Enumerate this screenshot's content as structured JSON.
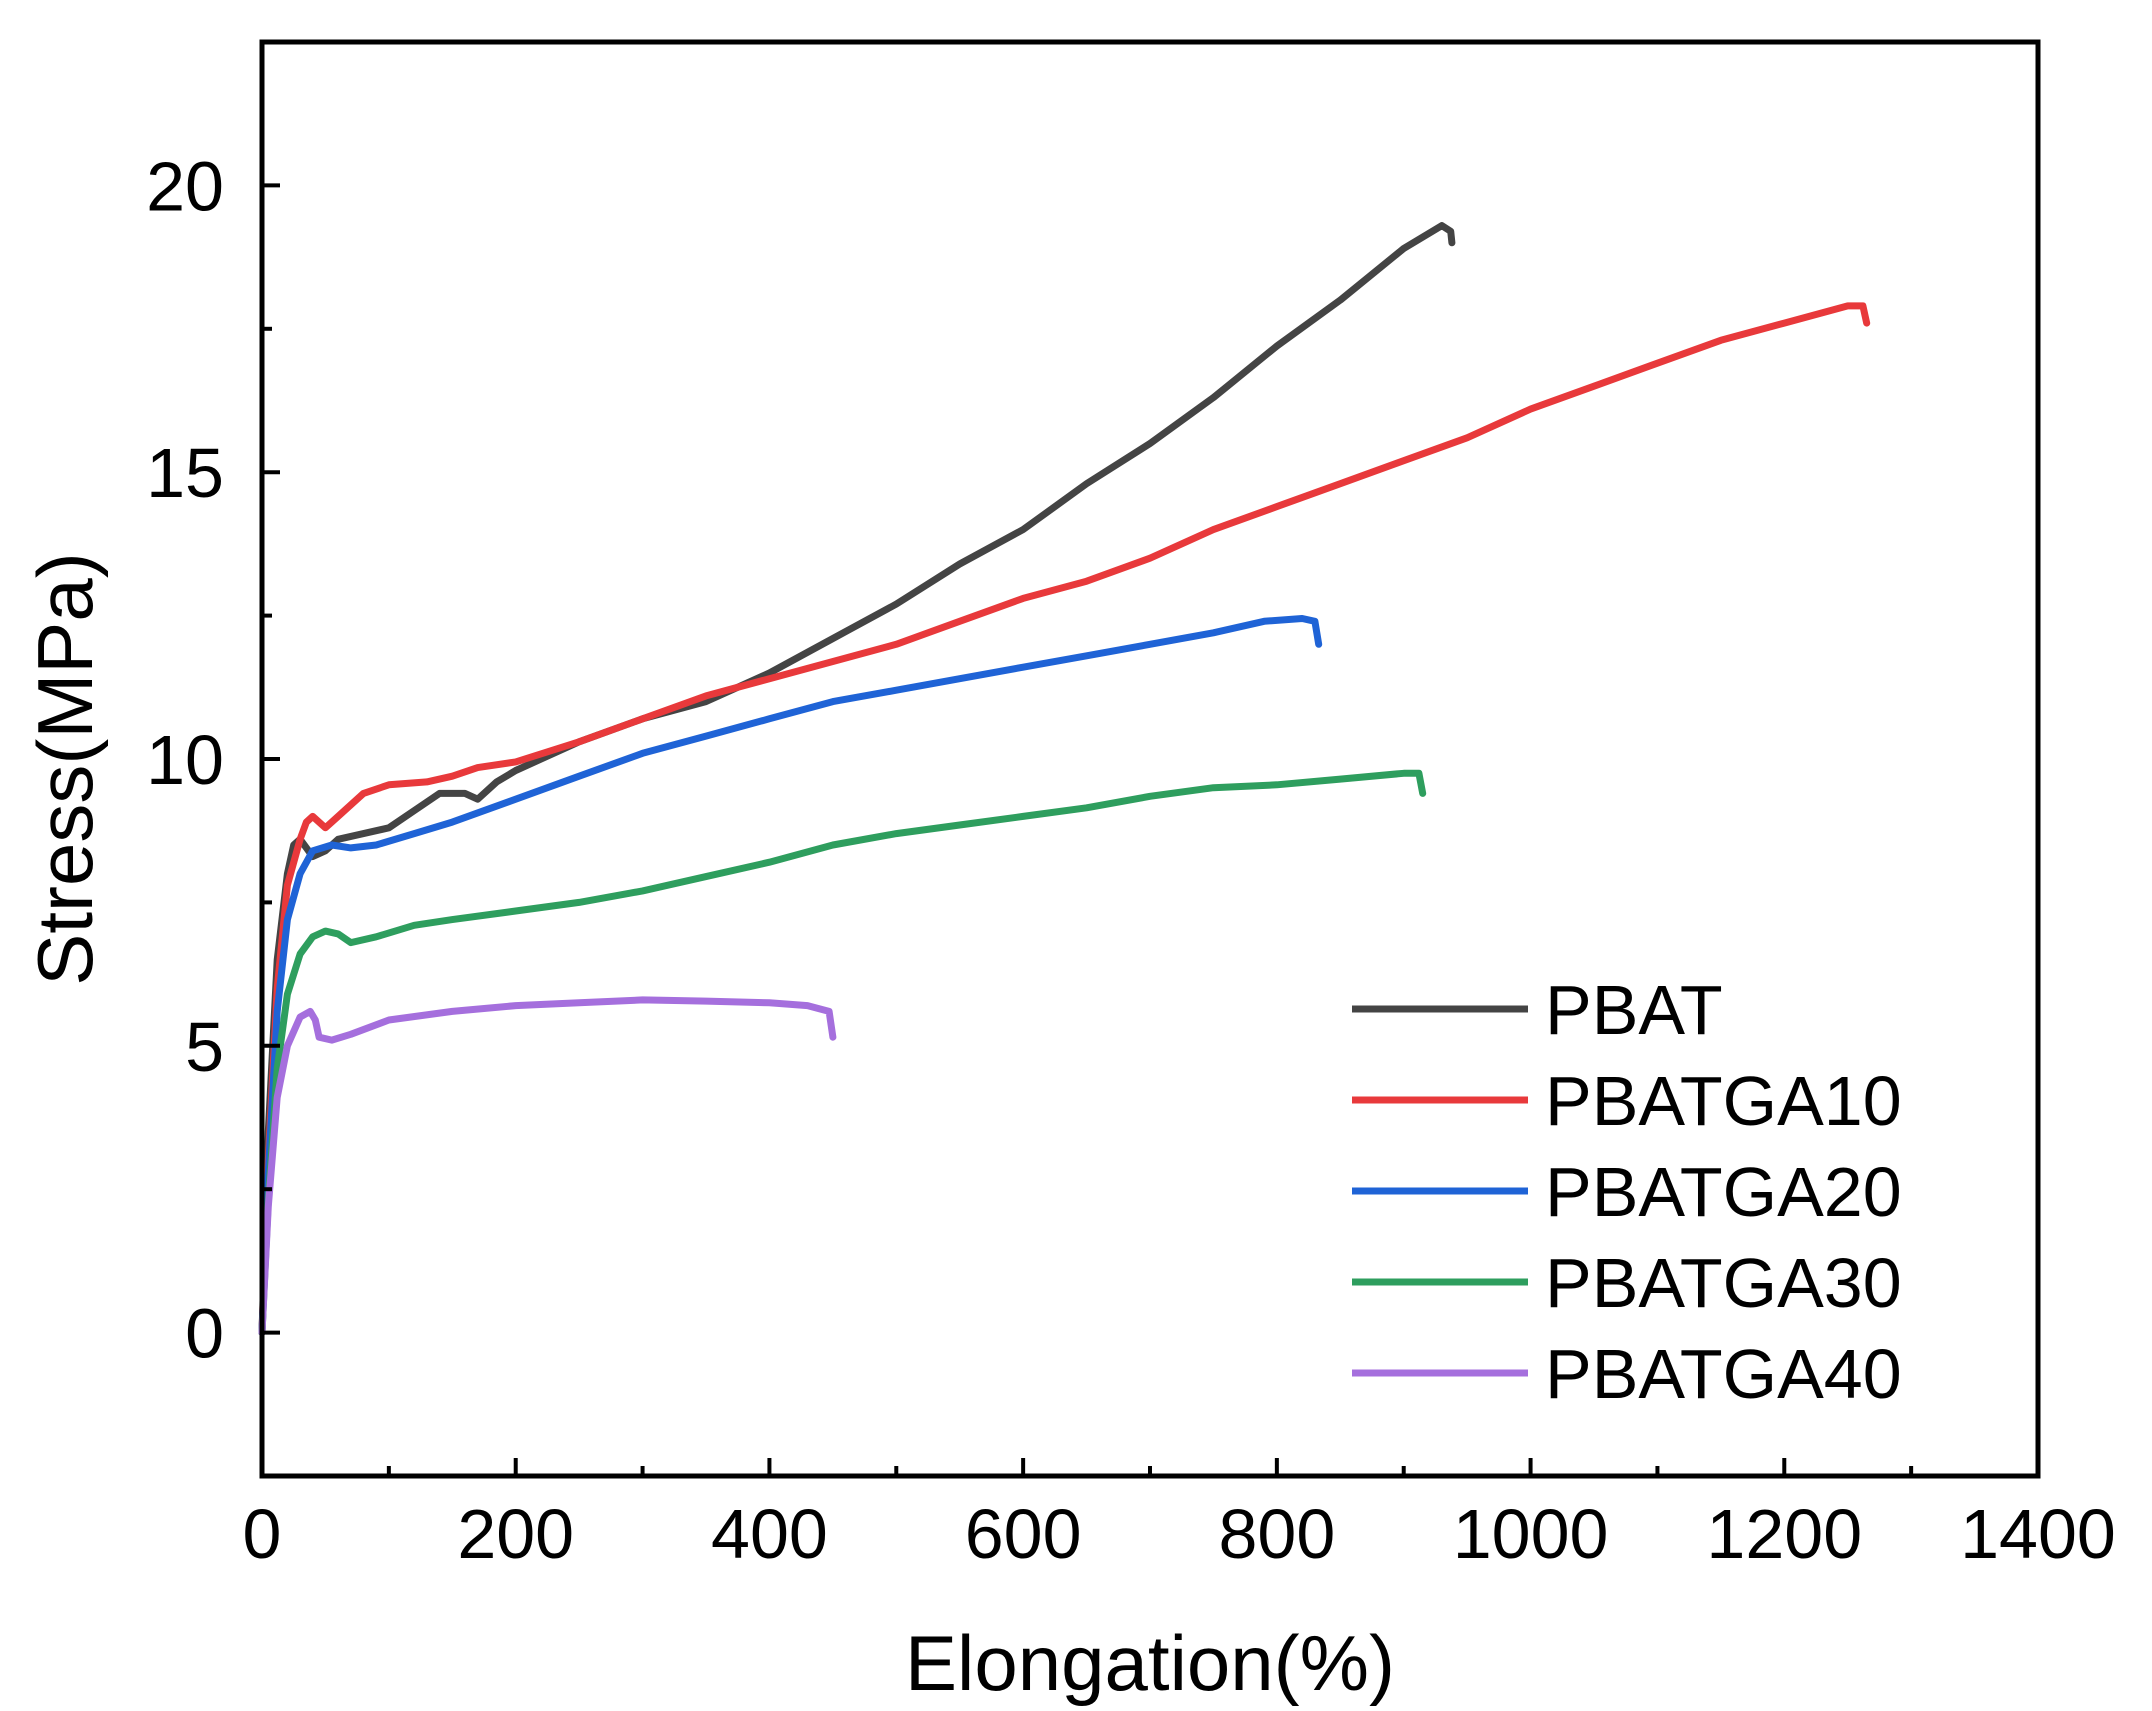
{
  "chart_data": {
    "type": "line",
    "title": "",
    "xlabel": "Elongation(%)",
    "ylabel": "Stress(MPa)",
    "xlim": [
      0,
      1400
    ],
    "ylim": [
      -2.5,
      22.5
    ],
    "xticks": [
      0,
      200,
      400,
      600,
      800,
      1000,
      1200,
      1400
    ],
    "xtick_labels": [
      "0",
      "200",
      "400",
      "600",
      "800",
      "1000",
      "1200",
      "1400"
    ],
    "yticks": [
      0,
      5,
      10,
      15,
      20
    ],
    "ytick_labels": [
      "0",
      "5",
      "10",
      "15",
      "20"
    ],
    "grid": false,
    "legend_position": "bottom-right",
    "series": [
      {
        "name": "PBAT",
        "color": "#444444",
        "points": [
          [
            0,
            0
          ],
          [
            5,
            3.5
          ],
          [
            12,
            6.5
          ],
          [
            20,
            8.0
          ],
          [
            25,
            8.5
          ],
          [
            30,
            8.6
          ],
          [
            40,
            8.3
          ],
          [
            50,
            8.4
          ],
          [
            60,
            8.6
          ],
          [
            80,
            8.7
          ],
          [
            100,
            8.8
          ],
          [
            120,
            9.1
          ],
          [
            140,
            9.4
          ],
          [
            160,
            9.4
          ],
          [
            170,
            9.3
          ],
          [
            185,
            9.6
          ],
          [
            200,
            9.8
          ],
          [
            250,
            10.3
          ],
          [
            300,
            10.7
          ],
          [
            350,
            11.0
          ],
          [
            400,
            11.5
          ],
          [
            450,
            12.1
          ],
          [
            500,
            12.7
          ],
          [
            550,
            13.4
          ],
          [
            600,
            14.0
          ],
          [
            650,
            14.8
          ],
          [
            700,
            15.5
          ],
          [
            750,
            16.3
          ],
          [
            800,
            17.2
          ],
          [
            850,
            18.0
          ],
          [
            900,
            18.9
          ],
          [
            930,
            19.3
          ],
          [
            937,
            19.2
          ],
          [
            938,
            19.0
          ]
        ]
      },
      {
        "name": "PBATGA10",
        "color": "#e8393b",
        "points": [
          [
            0,
            0
          ],
          [
            5,
            3.0
          ],
          [
            12,
            6.0
          ],
          [
            20,
            7.8
          ],
          [
            30,
            8.6
          ],
          [
            35,
            8.9
          ],
          [
            40,
            9.0
          ],
          [
            50,
            8.8
          ],
          [
            60,
            9.0
          ],
          [
            80,
            9.4
          ],
          [
            100,
            9.55
          ],
          [
            130,
            9.6
          ],
          [
            150,
            9.7
          ],
          [
            170,
            9.85
          ],
          [
            200,
            9.95
          ],
          [
            250,
            10.3
          ],
          [
            300,
            10.7
          ],
          [
            350,
            11.1
          ],
          [
            400,
            11.4
          ],
          [
            450,
            11.7
          ],
          [
            500,
            12.0
          ],
          [
            550,
            12.4
          ],
          [
            600,
            12.8
          ],
          [
            650,
            13.1
          ],
          [
            700,
            13.5
          ],
          [
            750,
            14.0
          ],
          [
            800,
            14.4
          ],
          [
            850,
            14.8
          ],
          [
            900,
            15.2
          ],
          [
            950,
            15.6
          ],
          [
            1000,
            16.1
          ],
          [
            1050,
            16.5
          ],
          [
            1100,
            16.9
          ],
          [
            1150,
            17.3
          ],
          [
            1200,
            17.6
          ],
          [
            1250,
            17.9
          ],
          [
            1262,
            17.9
          ],
          [
            1265,
            17.6
          ]
        ]
      },
      {
        "name": "PBATGA20",
        "color": "#1f63d6",
        "points": [
          [
            0,
            0
          ],
          [
            5,
            2.8
          ],
          [
            12,
            5.6
          ],
          [
            20,
            7.2
          ],
          [
            30,
            8.0
          ],
          [
            40,
            8.4
          ],
          [
            55,
            8.5
          ],
          [
            70,
            8.45
          ],
          [
            90,
            8.5
          ],
          [
            120,
            8.7
          ],
          [
            150,
            8.9
          ],
          [
            200,
            9.3
          ],
          [
            250,
            9.7
          ],
          [
            300,
            10.1
          ],
          [
            350,
            10.4
          ],
          [
            400,
            10.7
          ],
          [
            450,
            11.0
          ],
          [
            500,
            11.2
          ],
          [
            550,
            11.4
          ],
          [
            600,
            11.6
          ],
          [
            650,
            11.8
          ],
          [
            700,
            12.0
          ],
          [
            750,
            12.2
          ],
          [
            790,
            12.4
          ],
          [
            820,
            12.45
          ],
          [
            830,
            12.4
          ],
          [
            833,
            12.0
          ]
        ]
      },
      {
        "name": "PBATGA30",
        "color": "#2e9e5e",
        "points": [
          [
            0,
            0
          ],
          [
            5,
            2.3
          ],
          [
            12,
            4.6
          ],
          [
            20,
            5.9
          ],
          [
            30,
            6.6
          ],
          [
            40,
            6.9
          ],
          [
            50,
            7.0
          ],
          [
            60,
            6.95
          ],
          [
            70,
            6.8
          ],
          [
            90,
            6.9
          ],
          [
            120,
            7.1
          ],
          [
            150,
            7.2
          ],
          [
            200,
            7.35
          ],
          [
            250,
            7.5
          ],
          [
            300,
            7.7
          ],
          [
            350,
            7.95
          ],
          [
            400,
            8.2
          ],
          [
            450,
            8.5
          ],
          [
            500,
            8.7
          ],
          [
            550,
            8.85
          ],
          [
            600,
            9.0
          ],
          [
            650,
            9.15
          ],
          [
            700,
            9.35
          ],
          [
            750,
            9.5
          ],
          [
            800,
            9.55
          ],
          [
            850,
            9.65
          ],
          [
            900,
            9.75
          ],
          [
            912,
            9.75
          ],
          [
            915,
            9.4
          ]
        ]
      },
      {
        "name": "PBATGA40",
        "color": "#a56fdd",
        "points": [
          [
            0,
            0
          ],
          [
            5,
            2.2
          ],
          [
            12,
            4.1
          ],
          [
            20,
            5.0
          ],
          [
            30,
            5.5
          ],
          [
            38,
            5.6
          ],
          [
            42,
            5.45
          ],
          [
            45,
            5.15
          ],
          [
            55,
            5.1
          ],
          [
            70,
            5.2
          ],
          [
            100,
            5.45
          ],
          [
            150,
            5.6
          ],
          [
            200,
            5.7
          ],
          [
            250,
            5.75
          ],
          [
            300,
            5.8
          ],
          [
            350,
            5.78
          ],
          [
            400,
            5.75
          ],
          [
            430,
            5.7
          ],
          [
            447,
            5.6
          ],
          [
            450,
            5.15
          ]
        ]
      }
    ]
  }
}
